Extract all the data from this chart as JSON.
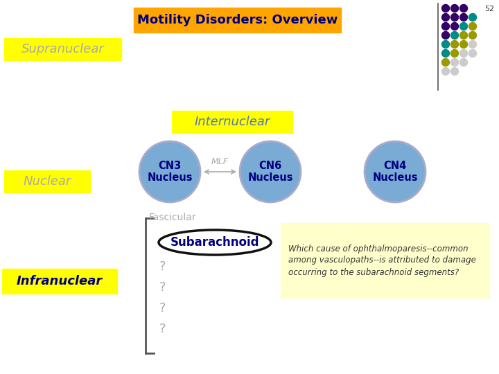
{
  "title": "Motility Disorders: Overview",
  "slide_number": "52",
  "bg_color": "#ffffff",
  "title_bg": "#FFA500",
  "title_text_color": "#000080",
  "yellow_bg": "#FFFF00",
  "label_supranuclear": "Supranuclear",
  "label_nuclear": "Nuclear",
  "label_infranuclear": "Infranuclear",
  "label_internuclear": "Internuclear",
  "label_fascicular": "Fascicular",
  "label_subarachnoid": "Subarachnoid",
  "label_mlf": "MLF",
  "cn3_label": "CN3\nNucleus",
  "cn6_label": "CN6\nNucleus",
  "cn4_label": "CN4\nNucleus",
  "circle_color": "#7AABD4",
  "circle_edge": "#AAAACC",
  "question_color": "#888888",
  "annotation_text": "Which cause of ophthalmoparesis--common\namong vasculopaths--is attributed to damage\noccurring to the subarachnoid segments?",
  "annotation_bg": "#FFFFCC",
  "dot_rows": [
    [
      "#330066",
      "#330066",
      "#330066"
    ],
    [
      "#330066",
      "#330066",
      "#330066",
      "#008B8B"
    ],
    [
      "#330066",
      "#330066",
      "#008B8B",
      "#999900"
    ],
    [
      "#330066",
      "#008B8B",
      "#999900",
      "#999900"
    ],
    [
      "#008B8B",
      "#999900",
      "#999900",
      "#CCCCCC"
    ],
    [
      "#008B8B",
      "#999900",
      "#CCCCCC",
      "#CCCCCC"
    ],
    [
      "#999900",
      "#CCCCCC",
      "#CCCCCC"
    ],
    [
      "#CCCCCC",
      "#CCCCCC"
    ]
  ]
}
